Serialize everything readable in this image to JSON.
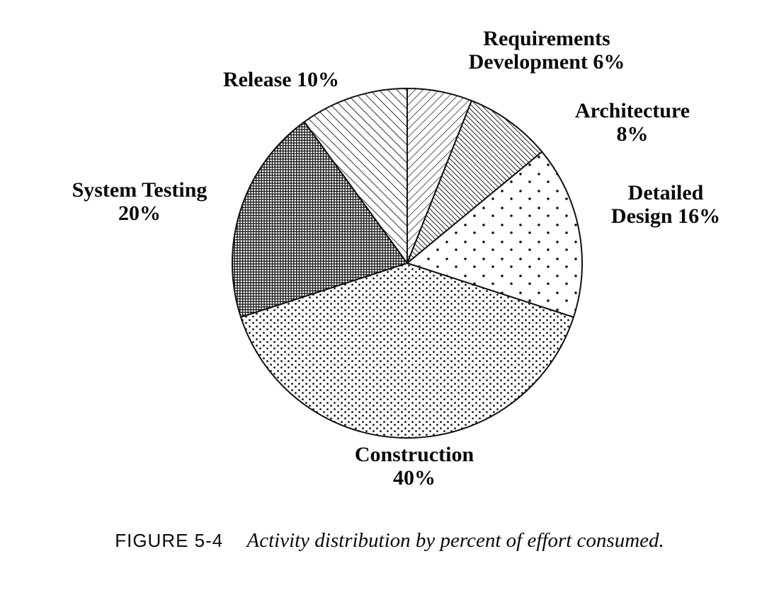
{
  "figure": {
    "caption_label": "FIGURE 5-4",
    "caption_text": "Activity distribution by percent of effort consumed."
  },
  "chart_data": {
    "type": "pie",
    "title": "",
    "unit": "percent of effort",
    "start_angle_deg": 0,
    "direction": "clockwise",
    "total": 100,
    "colors": {
      "ink": "#111111",
      "paper": "#ffffff"
    },
    "slices": [
      {
        "label": "Requirements Development",
        "value": 6,
        "display_label": "Requirements\nDevelopment 6%",
        "pattern": "diagonal-up-thin"
      },
      {
        "label": "Architecture",
        "value": 8,
        "display_label": "Architecture 8%",
        "pattern": "diagonal-down-dense"
      },
      {
        "label": "Detailed Design",
        "value": 16,
        "display_label": "Detailed\nDesign 16%",
        "pattern": "dots-sparse"
      },
      {
        "label": "Construction",
        "value": 40,
        "display_label": "Construction\n40%",
        "pattern": "dots-dense"
      },
      {
        "label": "System Testing",
        "value": 20,
        "display_label": "System Testing\n20%",
        "pattern": "crosshatch-dense"
      },
      {
        "label": "Release",
        "value": 10,
        "display_label": "Release 10%",
        "pattern": "diagonal-down-medium"
      }
    ]
  }
}
